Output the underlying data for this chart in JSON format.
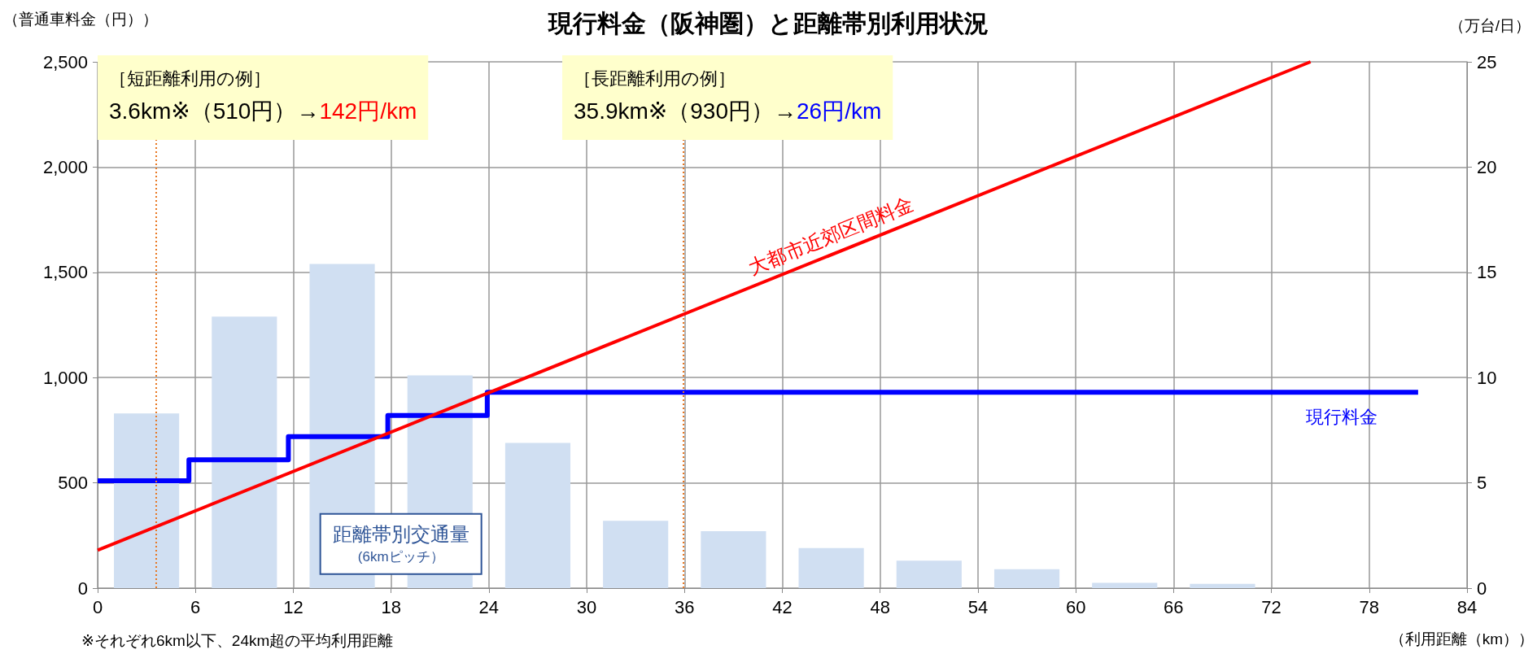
{
  "chart_data": {
    "type": "line",
    "title": "現行料金（阪神圏）と距離帯別利用状況",
    "ylabel": "（普通車料金（円））",
    "y2label": "（万台/日）",
    "xlabel": "（利用距離（km））",
    "xlim": [
      0,
      84
    ],
    "xticks": [
      0,
      6,
      12,
      18,
      24,
      30,
      36,
      42,
      48,
      54,
      60,
      66,
      72,
      78,
      84
    ],
    "ylim": [
      0,
      2500
    ],
    "yticks": [
      0,
      500,
      {
        "value": 1000,
        "label": "1,000"
      },
      {
        "value": 1500,
        "label": "1,500"
      },
      {
        "value": 2000,
        "label": "2,000"
      },
      {
        "value": 2500,
        "label": "2,500"
      }
    ],
    "y2lim": [
      0,
      25
    ],
    "y2ticks": [
      0,
      5,
      10,
      15,
      20,
      25
    ],
    "grid": true,
    "legend": false,
    "series": [
      {
        "name": "距離帯別交通量",
        "type": "bar",
        "axis": "y2",
        "color": "#d0dff2",
        "x": [
          3,
          9,
          15,
          21,
          27,
          33,
          39,
          45,
          51,
          57,
          63,
          69
        ],
        "values": [
          8.3,
          12.9,
          15.4,
          10.1,
          6.9,
          3.2,
          2.7,
          1.9,
          1.3,
          0.9,
          0.25,
          0.2
        ]
      },
      {
        "name": "現行料金",
        "type": "step",
        "color": "#0000ff",
        "x": [
          0,
          5.6,
          11.7,
          17.8,
          23.9,
          81
        ],
        "values": [
          510,
          610,
          720,
          820,
          930,
          930
        ]
      },
      {
        "name": "大都市近郊区間料金",
        "color": "#ff0000",
        "x": [
          0,
          74.4
        ],
        "values": [
          180,
          2500
        ]
      }
    ],
    "ref_lines": [
      {
        "axis": "x",
        "value": 3.6,
        "color": "#e87722",
        "line_style": "dotted"
      },
      {
        "axis": "x",
        "value": 35.9,
        "color": "#e87722",
        "line_style": "dotted"
      }
    ],
    "annotations": [
      "［短距離利用の例］",
      "3.6km※（510円）→",
      "142円/km",
      "［長距離利用の例］",
      "35.9km※（930円）→",
      "26円/km",
      "(6kmピッチ）",
      "※それぞれ6km以下、24km超の平均利用距離"
    ]
  }
}
